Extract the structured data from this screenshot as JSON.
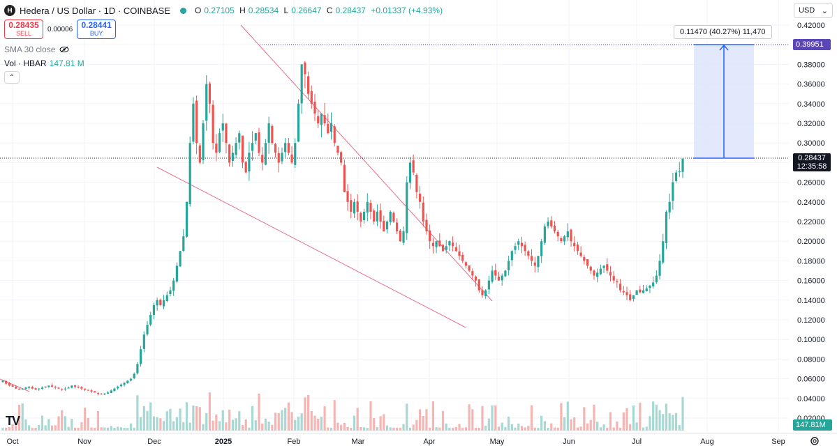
{
  "header": {
    "logo_letter": "H",
    "title": "Hedera / US Dollar · 1D · COINBASE",
    "status_color": "#26a69a",
    "open_label": "O",
    "open": "0.27105",
    "high_label": "H",
    "high": "0.28534",
    "low_label": "L",
    "low": "0.26647",
    "close_label": "C",
    "close": "0.28437",
    "change": "+0.01337 (+4.93%)",
    "change_color": "#26a69a"
  },
  "trade": {
    "sell_price": "0.28435",
    "sell_label": "SELL",
    "spread": "0.00006",
    "buy_price": "0.28441",
    "buy_label": "BUY"
  },
  "indicators": {
    "sma_label": "SMA 30 close",
    "eye_icon": "eye-off-icon",
    "vol_label": "Vol · HBAR",
    "vol_value": "147.81 M",
    "collapse_icon": "chevron-up-icon"
  },
  "currency_select": {
    "value": "USD"
  },
  "measure": {
    "label": "0.11470 (40.27%) 11,470"
  },
  "price_tags": {
    "target": "0.39951",
    "current": "0.28437",
    "countdown": "12:35:58",
    "volume": "147.81M"
  },
  "colors": {
    "up": "#26a69a",
    "down": "#ef5350",
    "trendline": "#e5708a",
    "measure_fill": "#dbe3fb",
    "measure_line": "#2962ff"
  },
  "chart_data": {
    "type": "candlestick",
    "symbol": "HBARUSD",
    "y_axis": {
      "ticks": [
        "0.42000",
        "0.40000",
        "0.38000",
        "0.36000",
        "0.34000",
        "0.32000",
        "0.30000",
        "0.28000",
        "0.26000",
        "0.24000",
        "0.22000",
        "0.20000",
        "0.18000",
        "0.16000",
        "0.14000",
        "0.12000",
        "0.10000",
        "0.08000",
        "0.06000",
        "0.04000",
        "0.02000"
      ],
      "range": [
        0.0,
        0.42
      ]
    },
    "x_axis": {
      "ticks": [
        "Oct",
        "Nov",
        "Dec",
        "2025",
        "Feb",
        "Mar",
        "Apr",
        "May",
        "Jun",
        "Jul",
        "Aug",
        "Sep"
      ],
      "range": [
        "2024-10-01",
        "2025-09-05"
      ]
    },
    "closes": [
      0.058,
      0.055,
      0.053,
      0.052,
      0.05,
      0.049,
      0.05,
      0.051,
      0.052,
      0.05,
      0.049,
      0.05,
      0.051,
      0.052,
      0.053,
      0.052,
      0.051,
      0.05,
      0.049,
      0.05,
      0.051,
      0.053,
      0.052,
      0.051,
      0.05,
      0.049,
      0.048,
      0.047,
      0.046,
      0.045,
      0.044,
      0.045,
      0.046,
      0.048,
      0.05,
      0.052,
      0.054,
      0.056,
      0.058,
      0.06,
      0.065,
      0.075,
      0.09,
      0.105,
      0.115,
      0.125,
      0.135,
      0.14,
      0.135,
      0.14,
      0.145,
      0.15,
      0.16,
      0.175,
      0.19,
      0.205,
      0.24,
      0.3,
      0.34,
      0.3,
      0.28,
      0.32,
      0.36,
      0.34,
      0.3,
      0.29,
      0.31,
      0.32,
      0.3,
      0.28,
      0.29,
      0.3,
      0.31,
      0.28,
      0.27,
      0.29,
      0.3,
      0.31,
      0.29,
      0.28,
      0.3,
      0.32,
      0.3,
      0.29,
      0.28,
      0.29,
      0.3,
      0.29,
      0.28,
      0.3,
      0.34,
      0.38,
      0.37,
      0.35,
      0.34,
      0.33,
      0.32,
      0.33,
      0.32,
      0.31,
      0.32,
      0.3,
      0.29,
      0.28,
      0.25,
      0.24,
      0.23,
      0.24,
      0.23,
      0.22,
      0.23,
      0.24,
      0.23,
      0.22,
      0.23,
      0.22,
      0.21,
      0.22,
      0.23,
      0.22,
      0.21,
      0.2,
      0.21,
      0.26,
      0.28,
      0.27,
      0.25,
      0.24,
      0.22,
      0.21,
      0.2,
      0.195,
      0.2,
      0.195,
      0.19,
      0.195,
      0.2,
      0.195,
      0.19,
      0.185,
      0.18,
      0.175,
      0.17,
      0.165,
      0.16,
      0.15,
      0.145,
      0.15,
      0.16,
      0.17,
      0.165,
      0.16,
      0.165,
      0.17,
      0.18,
      0.19,
      0.195,
      0.2,
      0.195,
      0.19,
      0.185,
      0.18,
      0.175,
      0.185,
      0.2,
      0.215,
      0.22,
      0.215,
      0.21,
      0.205,
      0.2,
      0.205,
      0.21,
      0.2,
      0.195,
      0.19,
      0.185,
      0.18,
      0.175,
      0.17,
      0.165,
      0.168,
      0.172,
      0.175,
      0.17,
      0.165,
      0.16,
      0.158,
      0.15,
      0.148,
      0.145,
      0.14,
      0.145,
      0.15,
      0.148,
      0.15,
      0.152,
      0.155,
      0.158,
      0.165,
      0.18,
      0.2,
      0.23,
      0.24,
      0.26,
      0.27,
      0.271,
      0.284
    ]
  }
}
